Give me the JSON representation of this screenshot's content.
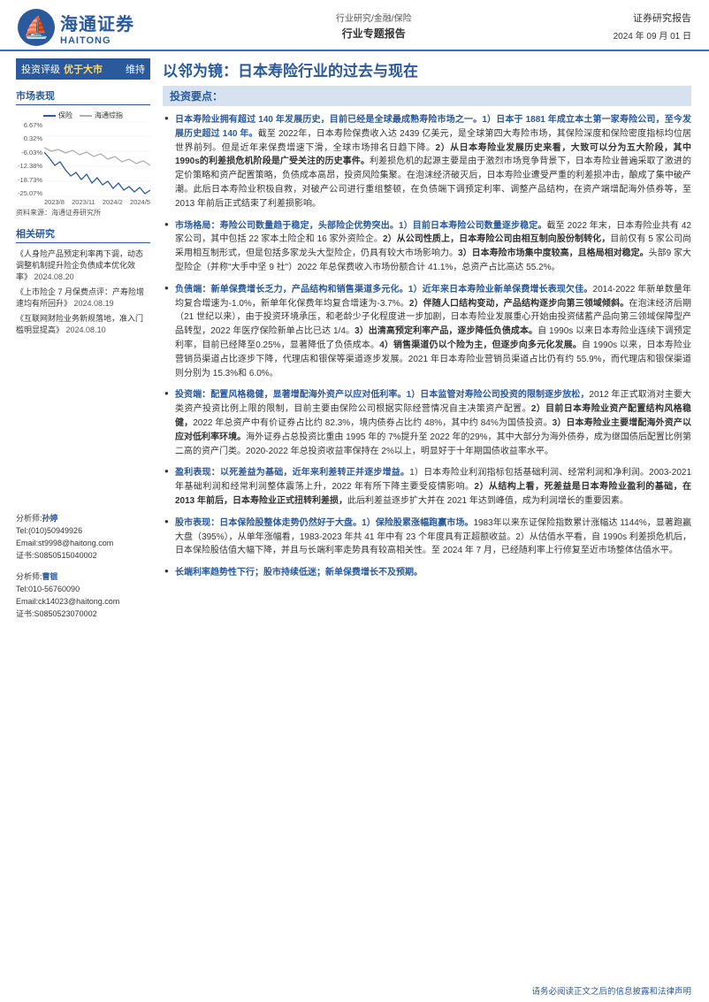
{
  "header": {
    "logo_cn": "海通证券",
    "logo_en": "HAITONG",
    "logo_glyph": "⛵",
    "breadcrumb": "行业研究/金融/保险",
    "report_type": "行业专题报告",
    "report_label": "证券研究报告",
    "date": "2024 年 09 月 01 日"
  },
  "sidebar": {
    "rating_label": "投资评级",
    "rating_value": "优于大市",
    "rating_keep": "维持",
    "perf_head": "市场表现",
    "chart": {
      "legend": [
        {
          "label": "保险",
          "color": "#2b5a9c"
        },
        {
          "label": "海通综指",
          "color": "#b0b0b0"
        }
      ],
      "yticks": [
        "6.67%",
        "0.32%",
        "-6.03%",
        "-12.38%",
        "-18.73%",
        "-25.07%"
      ],
      "xticks": [
        "2023/8",
        "2023/11",
        "2024/2",
        "2024/5"
      ],
      "background_color": "#ffffff",
      "grid_color": "#e6e6e6",
      "line1_color": "#2b5a9c",
      "line2_color": "#b0b0b0",
      "line1_path": "M0,35 L6,42 L12,50 L18,46 L24,55 L30,62 L36,58 L42,66 L48,60 L54,70 L60,64 L66,72 L72,68 L78,76 L84,70 L90,78 L96,74 L102,80 L108,75 L114,82 L120,78",
      "line2_path": "M0,30 L8,34 L16,32 L24,36 L32,33 L40,38 L48,35 L56,40 L64,37 L72,43 L80,40 L88,46 L96,43 L104,48 L112,45 L120,50",
      "source": "资料来源：海通证券研究所"
    },
    "related_head": "相关研究",
    "related": [
      {
        "title": "《人身险产品预定利率再下调，动态调整机制提升险企负债成本优化效率》",
        "date": "2024.08.20"
      },
      {
        "title": "《上市险企 7 月保费点评：产寿险增速均有所回升》",
        "date": "2024.08.19"
      },
      {
        "title": "《互联网财险业务新规落地，准入门槛明显提高》",
        "date": "2024.08.10"
      }
    ],
    "analysts": [
      {
        "label": "分析师:",
        "name": "孙婷",
        "tel_l": "Tel:",
        "tel": "(010)50949926",
        "email_l": "Email:",
        "email": "st9998@haitong.com",
        "cert_l": "证书:",
        "cert": "S0850515040002"
      },
      {
        "label": "分析师:",
        "name": "曹锟",
        "tel_l": "Tel:",
        "tel": "010-56760090",
        "email_l": "Email:",
        "email": "ck14023@haitong.com",
        "cert_l": "证书:",
        "cert": "S0850523070002"
      }
    ]
  },
  "main": {
    "title": "以邻为镜：日本寿险行业的过去与现在",
    "key_head": "投资要点：",
    "points": [
      {
        "lead": "日本寿险业拥有超过 140 年发展历史，目前已经是全球最成熟寿险市场之一。1）日本于 1881 年成立本土第一家寿险公司，至今发展历史超过 140 年。",
        "body": "截至 2022年，日本寿险保费收入达 2439 亿美元，是全球第四大寿险市场，其保险深度和保险密度指标均位居世界前列。但是近年来保费增速下滑，全球市场排名日趋下降。",
        "bold2": "2）从日本寿险业发展历史来看，大致可以分为五大阶段，其中 1990s的利差损危机阶段是广受关注的历史事件。",
        "body2": "利差损危机的起源主要是由于激烈市场竞争背景下，日本寿险业普遍采取了激进的定价策略和资产配置策略，负债成本高昂，投资风险集聚。在泡沫经济破灭后，日本寿险业遭受严重的利差损冲击，酿成了集中破产潮。此后日本寿险业积极自救，对破产公司进行重组整顿，在负债端下调预定利率、调整产品结构，在资产端增配海外债券等，至2013 年前后正式结束了利差损影响。"
      },
      {
        "lead": "市场格局：寿险公司数量趋于稳定，头部险企优势突出。1）目前日本寿险公司数量逐步稳定。",
        "body": "截至 2022 年末，日本寿险业共有 42 家公司，其中包括 22 家本土险企和 16 家外资险企。",
        "bold2": "2）从公司性质上，日本寿险公司由相互制向股份制转化，",
        "body2": "目前仅有 5 家公司尚采用相互制形式，但是包括多家龙头大型险企，仍具有较大市场影响力。",
        "bold3": "3）日本寿险市场集中度较高，且格局相对稳定。",
        "body3": "头部9 家大型险企（并称\"大手中坚 9 社\"）2022 年总保费收入市场份额合计 41.1%，总资产占比高达 55.2%。"
      },
      {
        "lead": "负债端：新单保费增长乏力，产品结构和销售渠道多元化。1）近年来日本寿险业新单保费增长表现欠佳。",
        "body": "2014-2022 年新单数量年均复合增速为-1.0%，新单年化保费年均复合增速为-3.7%。",
        "bold2": "2）伴随人口结构变动，产品结构逐步向第三领域倾斜。",
        "body2": "在泡沫经济后期（21 世纪以来），由于投资环境承压，和老龄少子化程度进一步加剧，日本寿险业发展重心开始由投资储蓄产品向第三领域保障型产品转型，2022 年医疗保险新单占比已达 1/4。",
        "bold3": "3）出清高预定利率产品，逐步降低负债成本。",
        "body3": "自 1990s 以来日本寿险业连续下调预定利率，目前已经降至0.25%，显著降低了负债成本。",
        "bold4": "4）销售渠道仍以个险为主，但逐步向多元化发展。",
        "body4": "自 1990s 以来，日本寿险业营销员渠道占比逐步下降，代理店和银保等渠道逐步发展。2021 年日本寿险业营销员渠道占比仍有约 55.9%，而代理店和银保渠道则分别为 15.3%和 6.0%。"
      },
      {
        "lead": "投资端：配置风格稳健，显著增配海外资产以应对低利率。1）日本监管对寿险公司投资的限制逐步放松，",
        "body": "2012 年正式取消对主要大类资产投资比例上限的限制，目前主要由保险公司根据实际经营情况自主决策资产配置。",
        "bold2": "2）目前日本寿险业资产配置结构风格稳健，",
        "body2": "2022 年总资产中有价证券占比约 82.3%，境内债券占比约 48%，其中约 84%为国债投资。",
        "bold3": "3）日本寿险业主要增配海外资产以应对低利率环境。",
        "body3": "海外证券占总投资比重由 1995 年的 7%提升至 2022 年的29%，其中大部分为海外债券，成为继国债后配置比例第二高的资产门类。2020-2022 年总投资收益率保持在 2%以上，明显好于十年期国债收益率水平。"
      },
      {
        "lead": "盈利表现：以死差益为基础，近年来利差转正并逐步增益。",
        "body": "1）日本寿险业利润指标包括基础利润、经常利润和净利润。2003-2021 年基础利润和经常利润整体震荡上升，2022 年有所下降主要受疫情影响。",
        "bold2": "2）从结构上看，死差益是日本寿险业盈利的基础，在 2013 年前后，日本寿险业正式扭转利差损，",
        "body2": "此后利差益逐步扩大并在 2021 年达到峰值，成为利润增长的重要因素。"
      },
      {
        "lead": "股市表现：日本保险股整体走势仍然好于大盘。1）保险股累涨幅跑赢市场。",
        "body": "1983年以来东证保险指数累计涨幅达 1144%，显著跑赢大盘（395%），从单年涨幅看，1983-2023 年共 41 年中有 23 个年度具有正超额收益。2）从估值水平看，自 1990s 利差损危机后，日本保险股估值大幅下降，并且与长端利率走势具有较高相关性。至 2024 年 7 月，已经随利率上行修复至近市场整体估值水平。"
      },
      {
        "lead": "长端利率趋势性下行；股市持续低迷；新单保费增长不及预期。",
        "body": ""
      }
    ]
  },
  "footer": "请务必阅读正文之后的信息披露和法律声明",
  "colors": {
    "brand": "#2b5a9c",
    "accent_bg": "#d6e2f0",
    "rating_highlight": "#ffd966",
    "text": "#333333",
    "muted": "#555555",
    "grid": "#e6e6e6"
  }
}
